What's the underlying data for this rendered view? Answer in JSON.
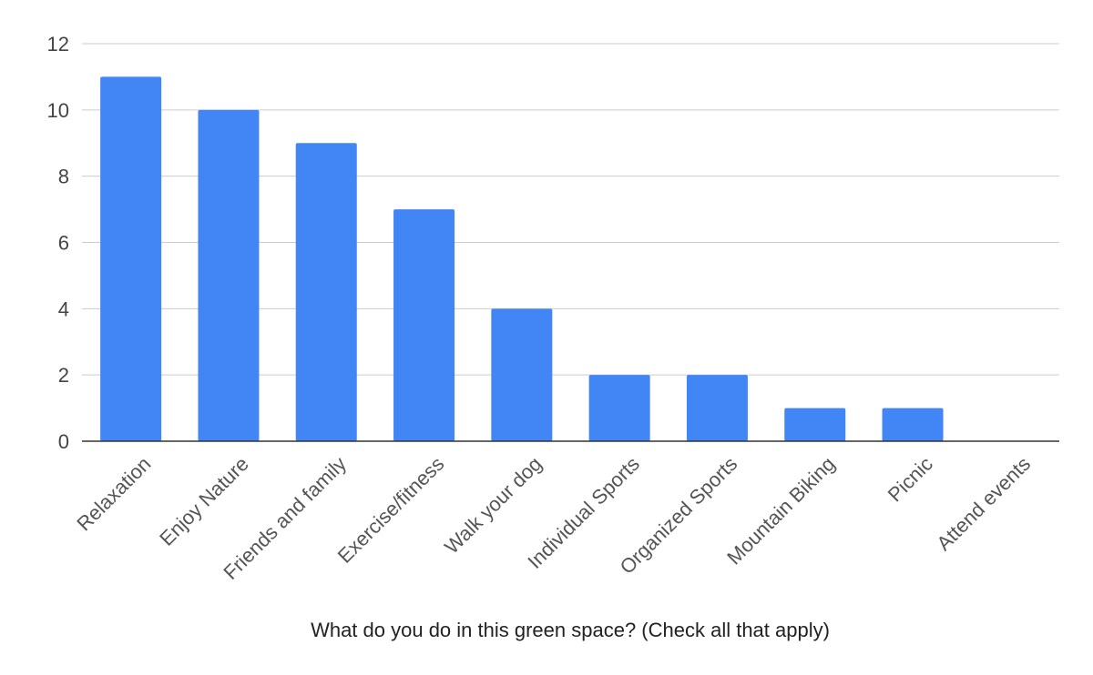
{
  "chart_data": {
    "type": "bar",
    "categories": [
      "Relaxation",
      "Enjoy Nature",
      "Friends and family",
      "Exercise/fitness",
      "Walk your dog",
      "Individual Sports",
      "Organized Sports",
      "Mountain Biking",
      "Picnic",
      "Attend events"
    ],
    "values": [
      11,
      10,
      9,
      7,
      4,
      2,
      2,
      1,
      1,
      0
    ],
    "title": "",
    "xlabel": "What do you do in this green space? (Check all that apply)",
    "ylabel": "",
    "ylim": [
      0,
      12
    ],
    "yticks": [
      0,
      2,
      4,
      6,
      8,
      10,
      12
    ],
    "grid": true,
    "legend": "none",
    "colors": {
      "bar": "#4285f4"
    }
  }
}
